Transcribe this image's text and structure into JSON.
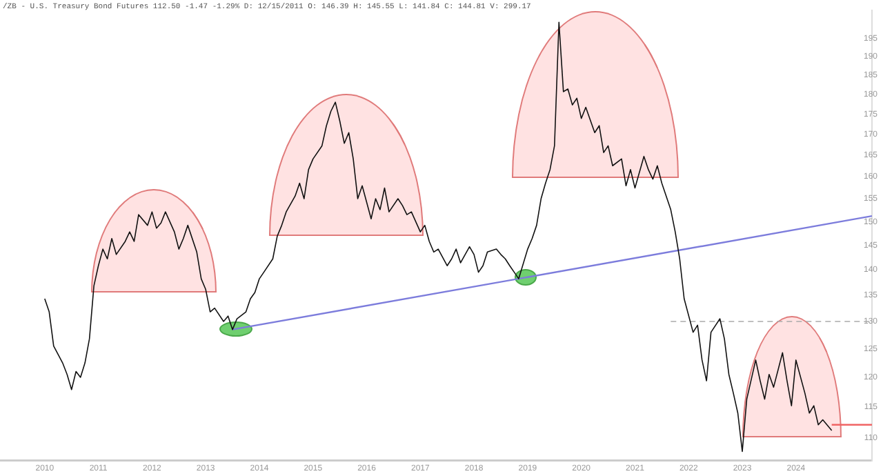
{
  "chart_data": {
    "type": "line",
    "title": "/ZB - U.S. Treasury Bond Futures 112.50 -1.47 -1.29% D: 12/15/2011 O: 146.39 H: 145.55 L: 141.84 C: 144.81 V: 299.17",
    "xlim": [
      "2009-03",
      "2025-06"
    ],
    "xticks": [
      "2010",
      "2011",
      "2012",
      "2013",
      "2014",
      "2015",
      "2016",
      "2017",
      "2018",
      "2019",
      "2020",
      "2021",
      "2022",
      "2023",
      "2024"
    ],
    "ylim": [
      106.5,
      203
    ],
    "yticks": [
      110,
      115,
      120,
      125,
      130,
      135,
      140,
      145,
      150,
      155,
      160,
      165,
      170,
      175,
      180,
      185,
      190,
      195
    ],
    "log": "y",
    "grid": false,
    "legend": false,
    "marker": "none",
    "series": [
      {
        "color": "#111111",
        "x": [
          "2010-01",
          "2010-02",
          "2010-03",
          "2010-05",
          "2010-06",
          "2010-07",
          "2010-08",
          "2010-09",
          "2010-10",
          "2010-11",
          "2010-12",
          "2011-01",
          "2011-02",
          "2011-03",
          "2011-04",
          "2011-05",
          "2011-07",
          "2011-08",
          "2011-09",
          "2011-10",
          "2011-12",
          "2012-01",
          "2012-02",
          "2012-03",
          "2012-04",
          "2012-06",
          "2012-07",
          "2012-08",
          "2012-09",
          "2012-11",
          "2012-12",
          "2013-01",
          "2013-02",
          "2013-03",
          "2013-05",
          "2013-06",
          "2013-07",
          "2013-08",
          "2013-10",
          "2013-11",
          "2013-12",
          "2014-01",
          "2014-02",
          "2014-04",
          "2014-05",
          "2014-06",
          "2014-07",
          "2014-09",
          "2014-10",
          "2014-11",
          "2014-12",
          "2015-01",
          "2015-03",
          "2015-04",
          "2015-05",
          "2015-06",
          "2015-07",
          "2015-08",
          "2015-09",
          "2015-10",
          "2015-11",
          "2015-12",
          "2016-02",
          "2016-03",
          "2016-04",
          "2016-05",
          "2016-06",
          "2016-08",
          "2016-09",
          "2016-10",
          "2016-11",
          "2017-01",
          "2017-02",
          "2017-03",
          "2017-04",
          "2017-05",
          "2017-07",
          "2017-08",
          "2017-09",
          "2017-10",
          "2017-12",
          "2018-01",
          "2018-02",
          "2018-03",
          "2018-04",
          "2018-06",
          "2018-07",
          "2018-08",
          "2018-09",
          "2018-10",
          "2018-11",
          "2019-01",
          "2019-02",
          "2019-03",
          "2019-04",
          "2019-05",
          "2019-06",
          "2019-07",
          "2019-08",
          "2019-09",
          "2019-10",
          "2019-11",
          "2019-12",
          "2020-01",
          "2020-02",
          "2020-04",
          "2020-05",
          "2020-06",
          "2020-07",
          "2020-08",
          "2020-10",
          "2020-11",
          "2020-12",
          "2021-01",
          "2021-03",
          "2021-04",
          "2021-05",
          "2021-06",
          "2021-07",
          "2021-09",
          "2021-10",
          "2021-11",
          "2021-12",
          "2022-02",
          "2022-03",
          "2022-04",
          "2022-05",
          "2022-06",
          "2022-08",
          "2022-09",
          "2022-10",
          "2022-11",
          "2022-12",
          "2023-01",
          "2023-02",
          "2023-04",
          "2023-05",
          "2023-06",
          "2023-07",
          "2023-08",
          "2023-10",
          "2023-11",
          "2023-12",
          "2024-01",
          "2024-03",
          "2024-04",
          "2024-05",
          "2024-06",
          "2024-07",
          "2024-09"
        ],
        "values": [
          134.3,
          131.8,
          125.5,
          122.5,
          120.5,
          117.9,
          121.0,
          120.0,
          122.5,
          126.8,
          136.8,
          140.8,
          144.2,
          142.2,
          146.4,
          143.1,
          145.8,
          147.8,
          145.8,
          151.5,
          149.2,
          152.1,
          148.6,
          149.7,
          152.1,
          147.8,
          144.2,
          146.4,
          149.2,
          143.6,
          138.2,
          136.1,
          131.8,
          132.5,
          130.0,
          131.0,
          128.5,
          130.5,
          131.8,
          134.3,
          135.5,
          138.2,
          139.5,
          142.2,
          146.9,
          149.2,
          152.1,
          155.6,
          158.5,
          155.0,
          161.6,
          164.1,
          167.2,
          172.1,
          175.7,
          178.0,
          173.2,
          167.8,
          170.4,
          164.1,
          155.0,
          157.9,
          150.6,
          155.0,
          152.6,
          157.4,
          152.1,
          155.0,
          153.5,
          151.5,
          152.1,
          147.8,
          149.2,
          145.8,
          143.6,
          144.2,
          140.8,
          142.2,
          144.2,
          141.4,
          144.7,
          143.1,
          139.5,
          140.8,
          143.6,
          144.2,
          143.1,
          142.2,
          140.8,
          139.5,
          138.2,
          144.2,
          146.4,
          149.2,
          155.0,
          158.5,
          161.6,
          167.2,
          199.6,
          180.7,
          181.4,
          177.3,
          179.0,
          173.9,
          176.7,
          170.4,
          172.1,
          165.6,
          167.2,
          162.5,
          164.1,
          157.9,
          161.6,
          157.4,
          164.7,
          161.6,
          159.4,
          162.5,
          158.5,
          152.6,
          147.8,
          142.2,
          134.3,
          128.0,
          129.3,
          123.0,
          119.4,
          128.0,
          130.5,
          126.8,
          120.5,
          117.3,
          114.0,
          107.9,
          116.3,
          123.0,
          119.4,
          116.3,
          120.5,
          118.3,
          124.3,
          119.4,
          115.2,
          123.0,
          117.3,
          114.0,
          115.2,
          112.1,
          112.9,
          111.2
        ]
      },
      {
        "type": "line",
        "color": "#7c7cdc",
        "x": [
          "2013-07",
          "2025-06"
        ],
        "values": [
          128.5,
          151.2
        ]
      },
      {
        "type": "line",
        "color": "#aaaaaa",
        "line_style": "dashed",
        "x": [
          "2021-09",
          "2025-06"
        ],
        "values": [
          130,
          130
        ]
      },
      {
        "type": "line",
        "color": "#f06464",
        "x": [
          "2024-09",
          "2025-06"
        ],
        "values": [
          112.1,
          112.1
        ]
      }
    ]
  }
}
